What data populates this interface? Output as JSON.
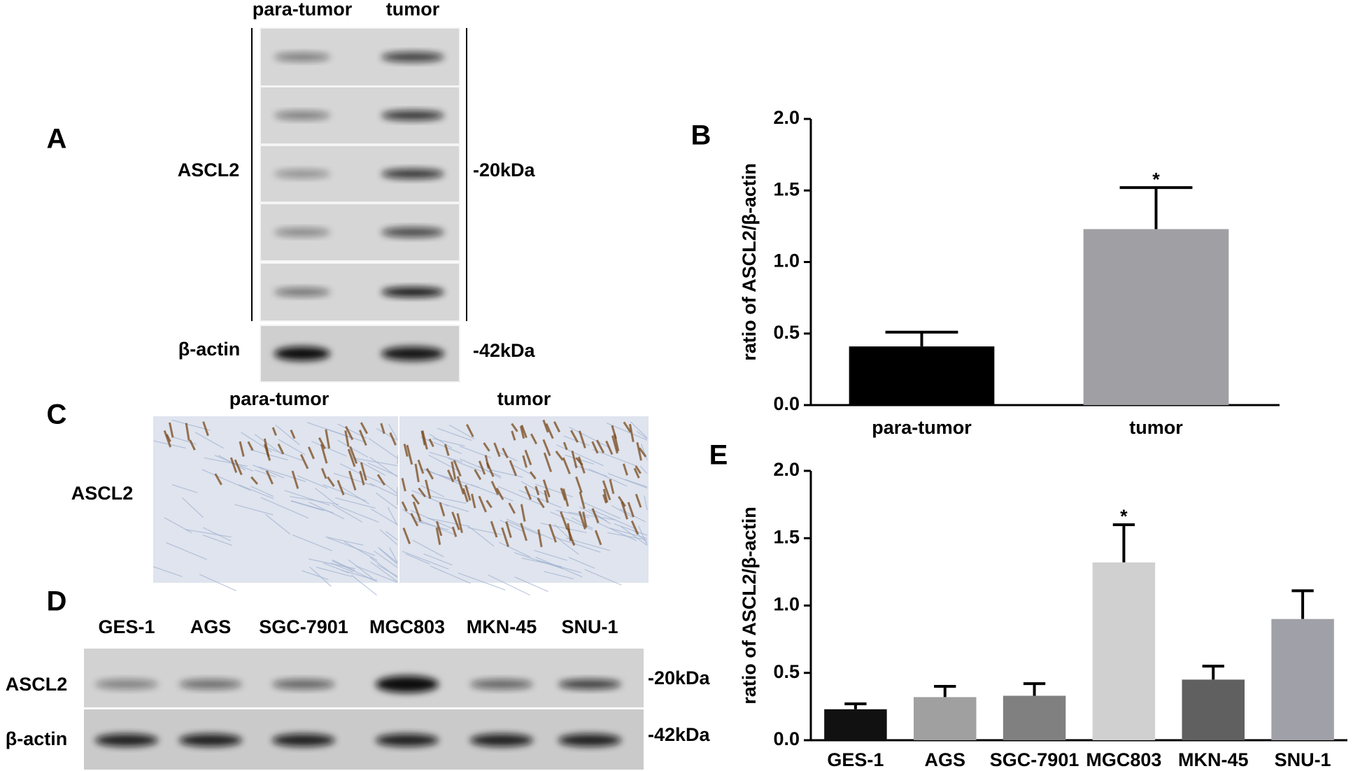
{
  "panel_labels": [
    "A",
    "B",
    "C",
    "D",
    "E"
  ],
  "blot_a": {
    "columns": [
      "para-tumor",
      "tumor"
    ],
    "rows": [
      "ASCL2",
      "β-actin"
    ],
    "sizes": [
      "-20kDa",
      "-42kDa"
    ]
  },
  "ihc_c": {
    "columns": [
      "para-tumor",
      "tumor"
    ],
    "row": "ASCL2"
  },
  "blot_d": {
    "columns": [
      "GES-1",
      "AGS",
      "SGC-7901",
      "MGC803",
      "MKN-45",
      "SNU-1"
    ],
    "rows": [
      "ASCL2",
      "β-actin"
    ],
    "sizes": [
      "-20kDa",
      "-42kDa"
    ]
  },
  "chart_data": [
    {
      "type": "bar",
      "ylabel": "ratio of ASCL2/β-actin",
      "categories": [
        "para-tumor",
        "tumor"
      ],
      "values": [
        0.41,
        1.23
      ],
      "errors": [
        0.1,
        0.29
      ],
      "colors": [
        "#000000",
        "#a0a0a4"
      ],
      "ylim": [
        0,
        2
      ],
      "yticks": [
        {
          "value": 0,
          "label": "0.0"
        },
        0.5,
        {
          "value": 1,
          "label": "1.0"
        },
        1.5,
        {
          "value": 2,
          "label": "2.0"
        }
      ],
      "annotations": [
        {
          "text": "*",
          "category": "tumor"
        }
      ]
    },
    {
      "type": "bar",
      "ylabel": "ratio of ASCL2/β-actin",
      "categories": [
        "GES-1",
        "AGS",
        "SGC-7901",
        "MGC803",
        "MKN-45",
        "SNU-1"
      ],
      "values": [
        0.23,
        0.32,
        0.33,
        1.32,
        0.45,
        0.9
      ],
      "errors": [
        0.04,
        0.08,
        0.09,
        0.28,
        0.1,
        0.21
      ],
      "colors": [
        "#111111",
        "#a0a0a0",
        "#808080",
        "#d0d0d0",
        "#606060",
        "#a0a0a8"
      ],
      "ylim": [
        0,
        2
      ],
      "yticks": [
        {
          "value": 0,
          "label": "0.0"
        },
        0.5,
        {
          "value": 1,
          "label": "1.0"
        },
        1.5,
        {
          "value": 2,
          "label": "2.0"
        }
      ],
      "annotations": [
        {
          "text": "*",
          "category": "MGC803"
        }
      ]
    }
  ]
}
